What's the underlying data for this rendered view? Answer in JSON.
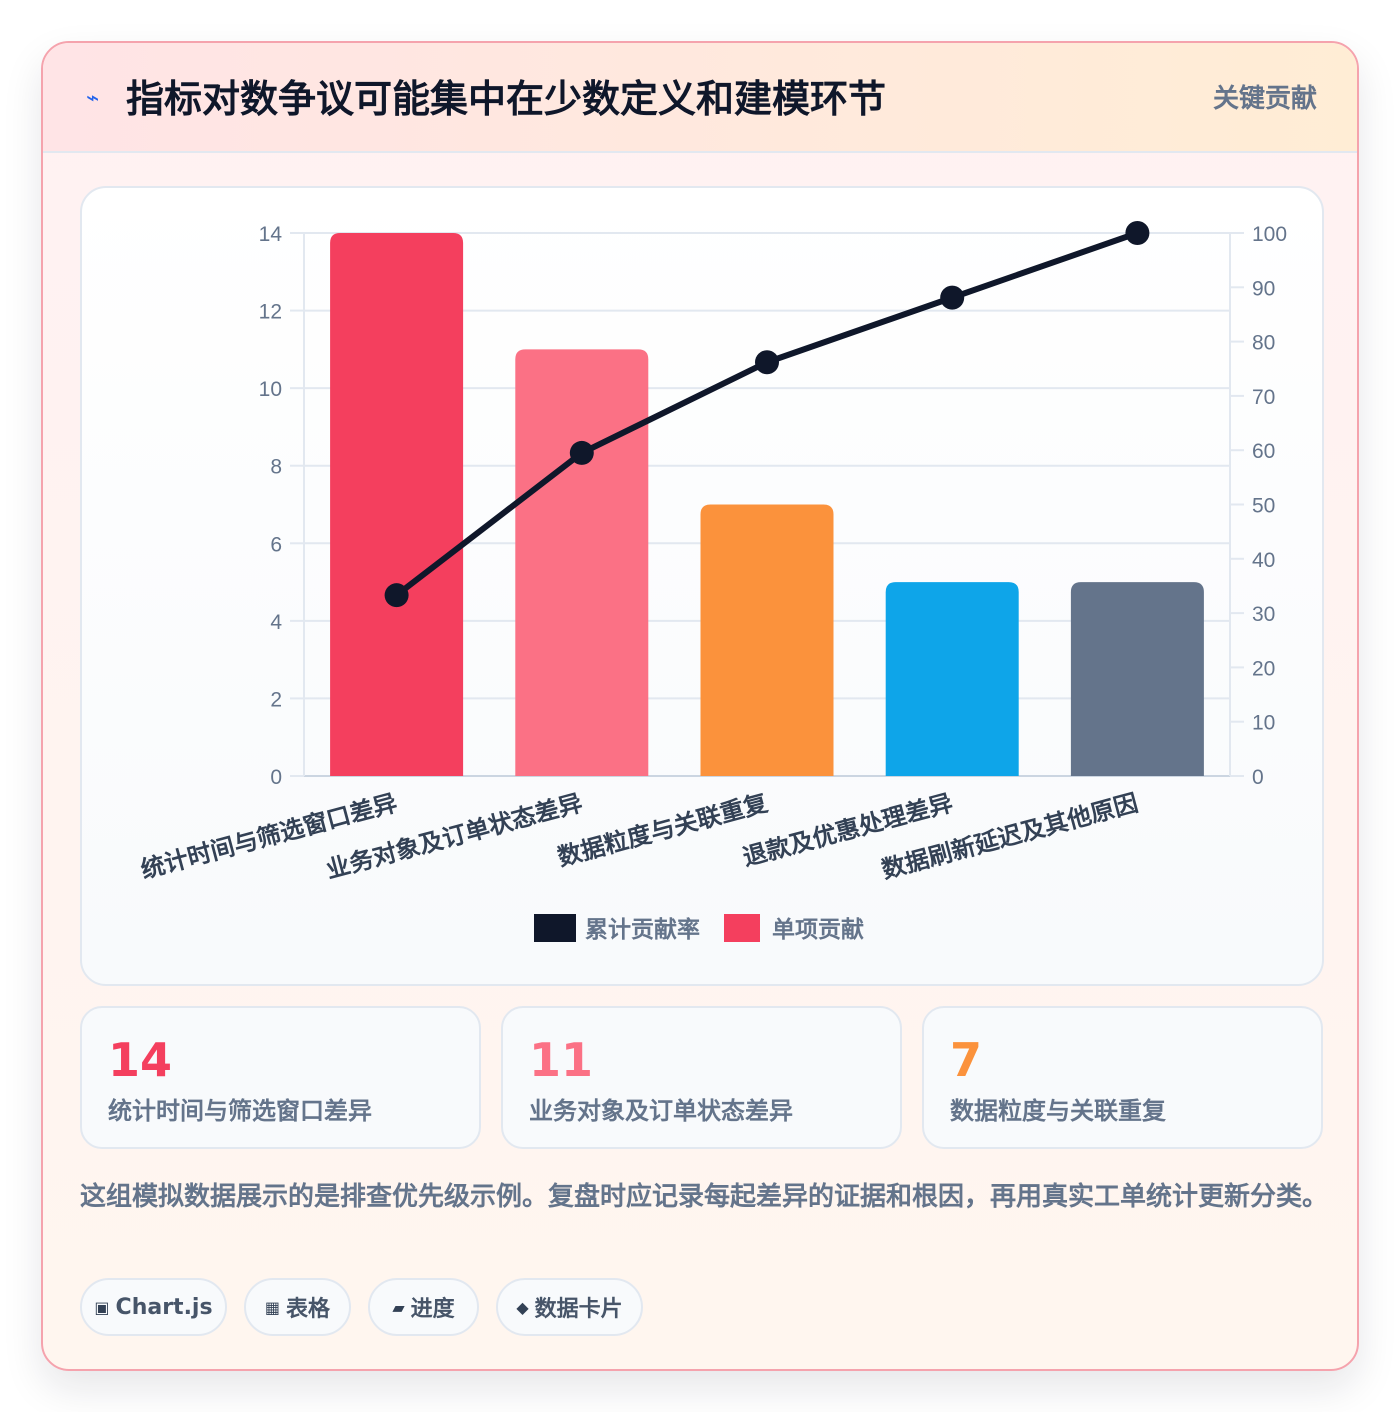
{
  "header": {
    "icon": "⌁",
    "title": "指标对数争议可能集中在少数定义和建模环节",
    "badge": "关键贡献"
  },
  "chart_data": {
    "type": "bar",
    "categories": [
      "统计时间与筛选窗口差异",
      "业务对象及订单状态差异",
      "数据粒度与关联重复",
      "退款及优惠处理差异",
      "数据刷新延迟及其他原因"
    ],
    "series": [
      {
        "name": "累计贡献率",
        "type": "line",
        "axis": "right",
        "values": [
          33.3,
          59.5,
          76.2,
          88.1,
          100
        ],
        "color": "#0f172a"
      },
      {
        "name": "单项贡献",
        "type": "bar",
        "axis": "left",
        "values": [
          14,
          11,
          7,
          5,
          5
        ],
        "colors": [
          "#f43f5e",
          "#fb7185",
          "#fb923c",
          "#0ea5e9",
          "#64748b"
        ],
        "color": "#f43f5e"
      }
    ],
    "ylim": [
      0,
      14
    ],
    "yticks": [
      "0",
      "2",
      "4",
      "6",
      "8",
      "10",
      "12",
      "14"
    ],
    "y2lim": [
      0,
      100
    ],
    "y2ticks": [
      "0",
      "10",
      "20",
      "30",
      "40",
      "50",
      "60",
      "70",
      "80",
      "90",
      "100"
    ],
    "grid": true,
    "legend": "bottom"
  },
  "stats": [
    {
      "value": "14",
      "label": "统计时间与筛选窗口差异",
      "color": "#f43f5e"
    },
    {
      "value": "11",
      "label": "业务对象及订单状态差异",
      "color": "#fb7185"
    },
    {
      "value": "7",
      "label": "数据粒度与关联重复",
      "color": "#fb923c"
    }
  ],
  "note": "这组模拟数据展示的是排查优先级示例。复盘时应记录每起差异的证据和根因，再用真实工单统计更新分类。",
  "tags": [
    {
      "icon": "▣",
      "label": "Chart.js"
    },
    {
      "icon": "▦",
      "label": "表格"
    },
    {
      "icon": "▰",
      "label": "进度"
    },
    {
      "icon": "◆",
      "label": "数据卡片"
    }
  ]
}
